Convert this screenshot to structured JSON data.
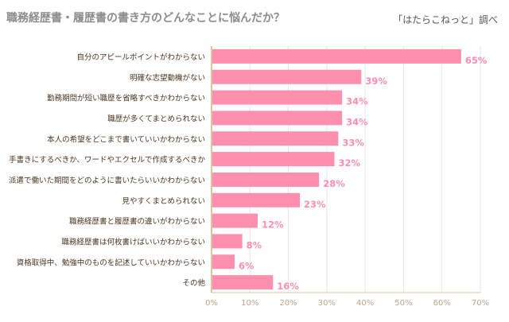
{
  "colors": {
    "bar": "#ff8fae",
    "value_text": "#ff8fae",
    "category_text": "#4a3520",
    "axis": "#d9c4a5",
    "grid": "#e6e6e6",
    "tick_text": "#b8a68e"
  },
  "chart_data": {
    "type": "bar",
    "orientation": "horizontal",
    "title": "職務経歴書・履歴書の書き方のどんなことに悩んだか？",
    "source": "「はたらこねっと」調べ",
    "categories": [
      "自分のアピールポイントがわからない",
      "明確な志望動機がない",
      "勤務期間が短い職歴を省略すべきかわからない",
      "職歴が多くてまとめられない",
      "本人の希望をどこまで書いていいかわからない",
      "手書きにするべきか、ワードやエクセルで作成するべきか",
      "派遣で働いた期間をどのように書いたらいいかわからない",
      "見やすくまとめられない",
      "職務経歴書と履歴書の違いがわからない",
      "職務経歴書は何枚書けばいいかわからない",
      "資格取得中、勉強中のものを記述していいかわからない",
      "その他"
    ],
    "values": [
      65,
      39,
      34,
      34,
      33,
      32,
      28,
      23,
      12,
      8,
      6,
      16
    ],
    "value_labels": [
      "65%",
      "39%",
      "34%",
      "34%",
      "33%",
      "32%",
      "28%",
      "23%",
      "12%",
      "8%",
      "6%",
      "16%"
    ],
    "xlim": [
      0,
      70
    ],
    "xticks": [
      "0%",
      "10%",
      "20%",
      "30%",
      "40%",
      "50%",
      "60%",
      "70%"
    ],
    "grid": true
  }
}
